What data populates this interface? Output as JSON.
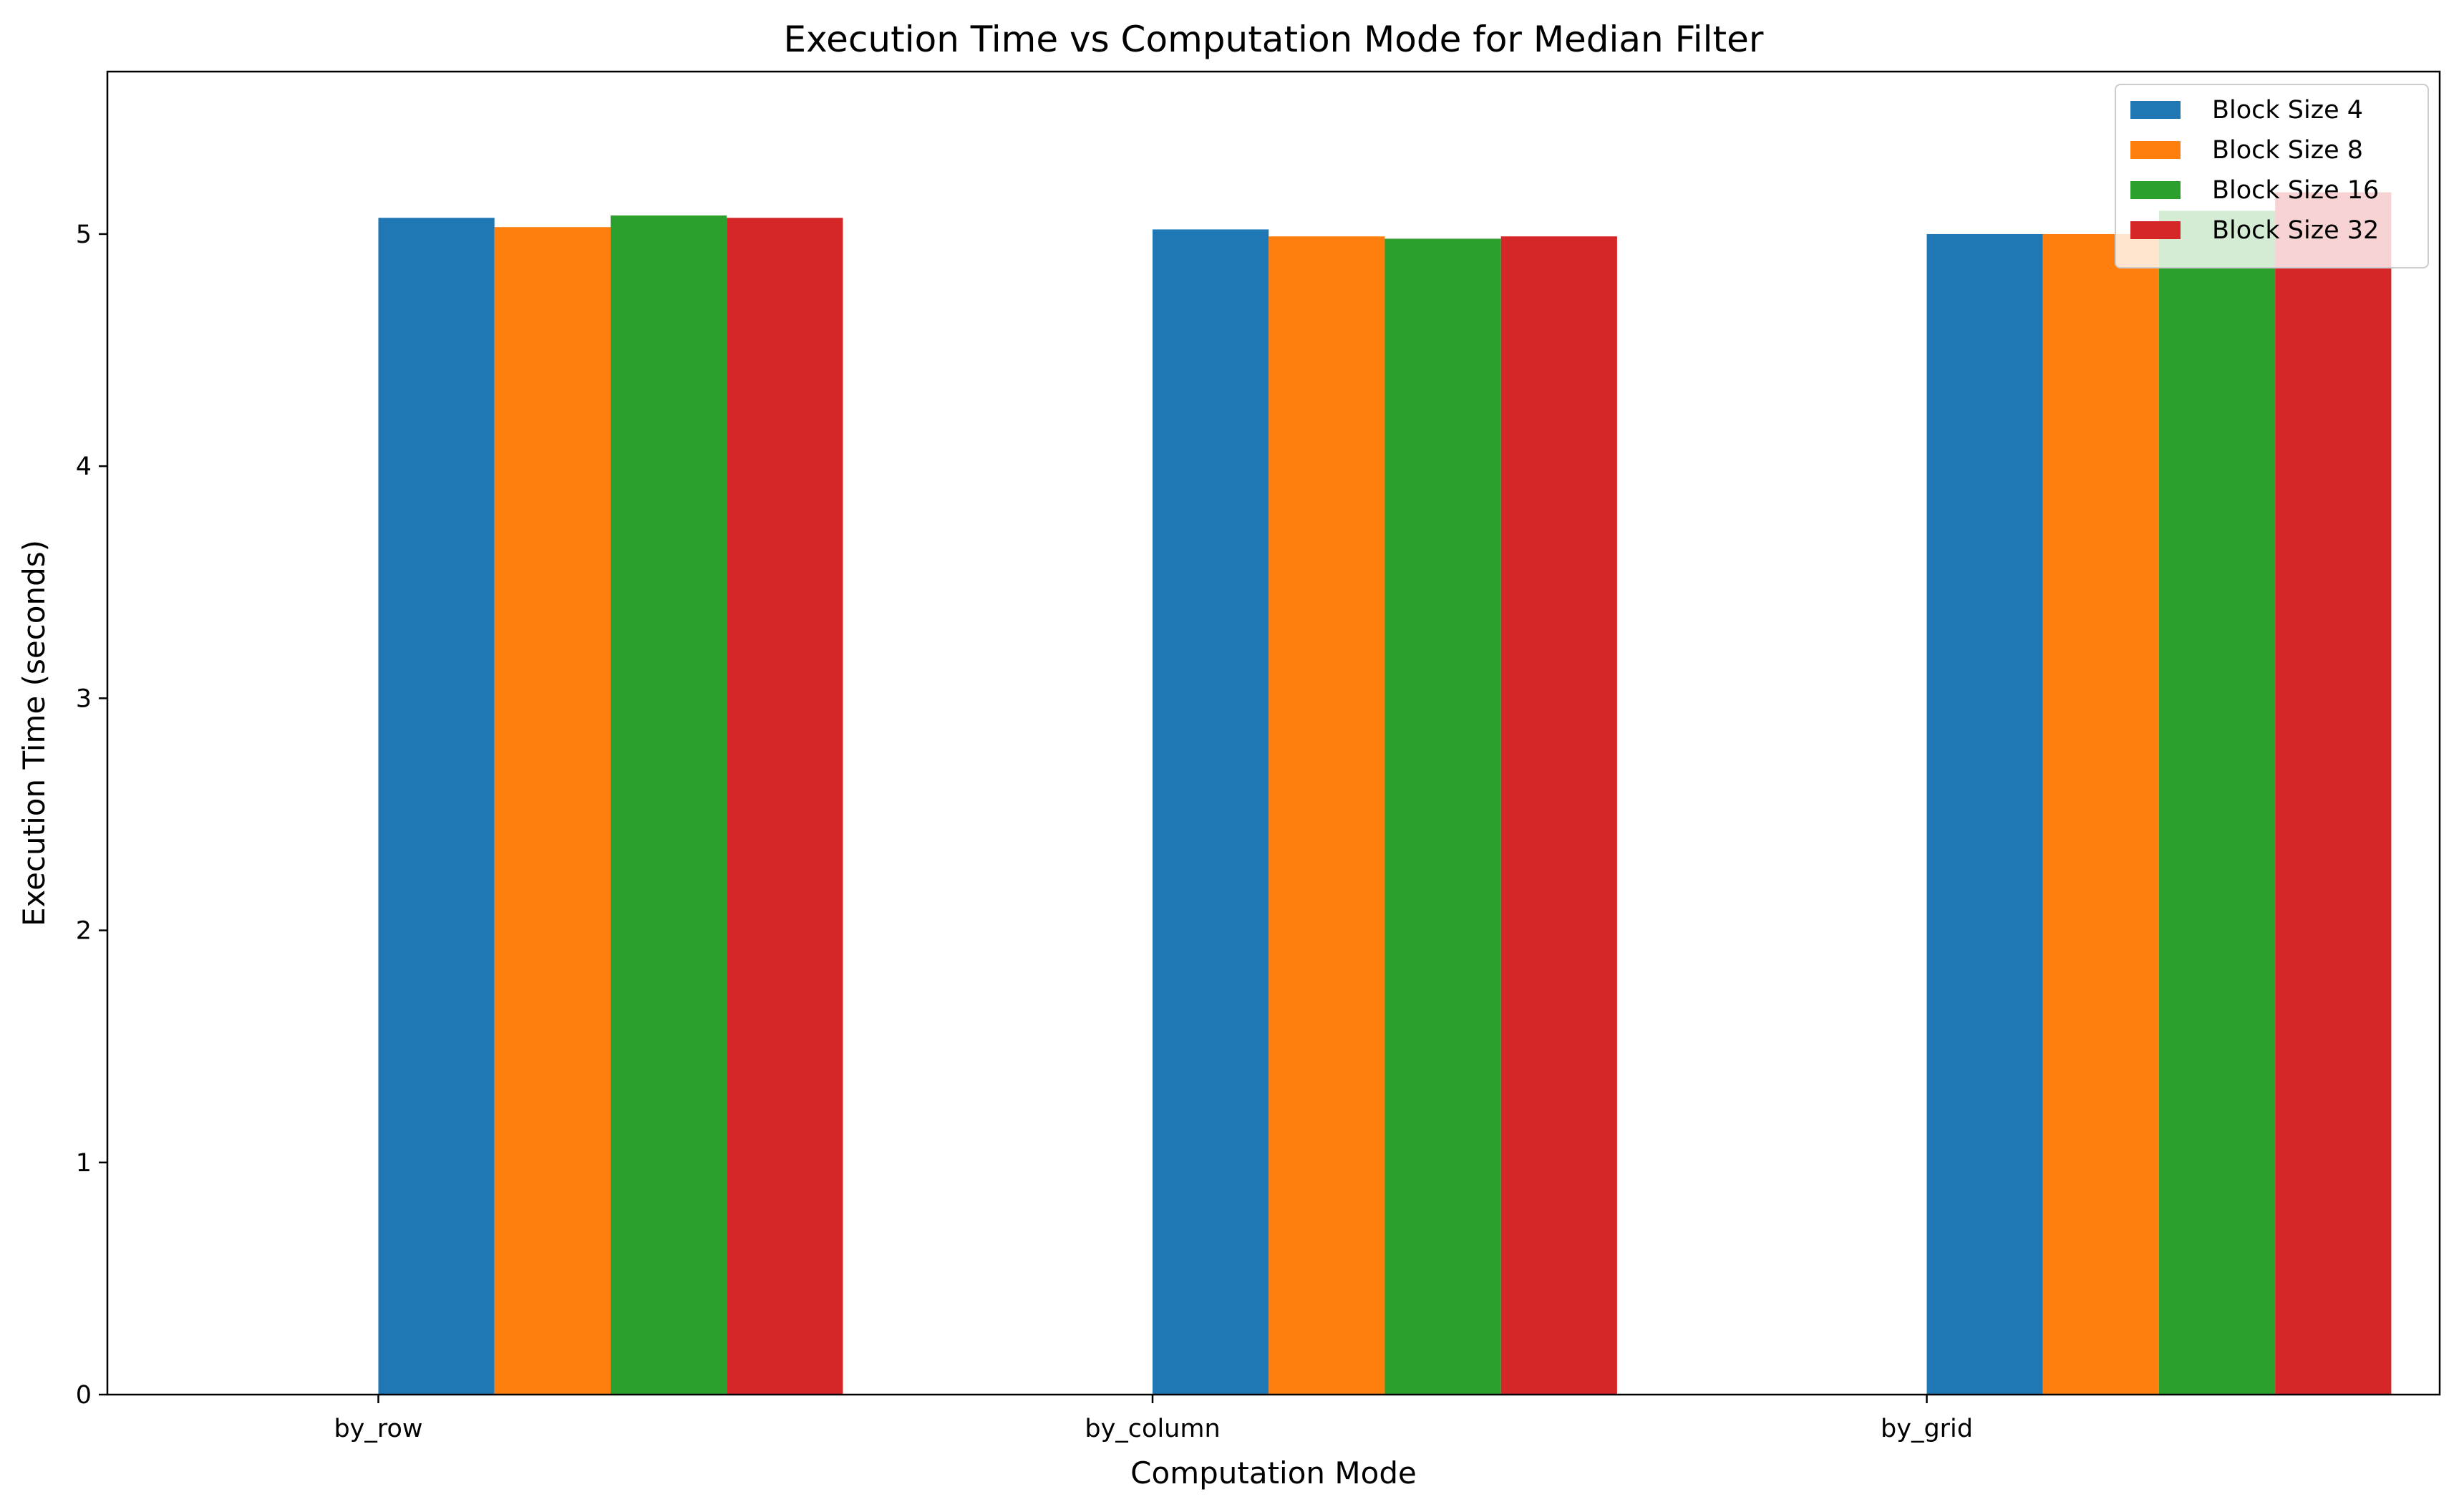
{
  "chart_data": {
    "type": "bar",
    "title": "Execution Time vs Computation Mode for Median Filter",
    "xlabel": "Computation Mode",
    "ylabel": "Execution Time (seconds)",
    "categories": [
      "by_row",
      "by_column",
      "by_grid"
    ],
    "series": [
      {
        "name": "Block Size 4",
        "color": "#1f77b4",
        "values": [
          5.07,
          5.02,
          5.0
        ]
      },
      {
        "name": "Block Size 8",
        "color": "#ff7f0e",
        "values": [
          5.03,
          4.99,
          5.0
        ]
      },
      {
        "name": "Block Size 16",
        "color": "#2ca02c",
        "values": [
          5.08,
          4.98,
          5.1
        ]
      },
      {
        "name": "Block Size 32",
        "color": "#d62728",
        "values": [
          5.07,
          4.99,
          5.18
        ]
      }
    ],
    "ylim": [
      0,
      5.7
    ],
    "yticks": [
      0,
      1,
      2,
      3,
      4,
      5
    ],
    "grid": false,
    "legend_position": "top-right"
  }
}
